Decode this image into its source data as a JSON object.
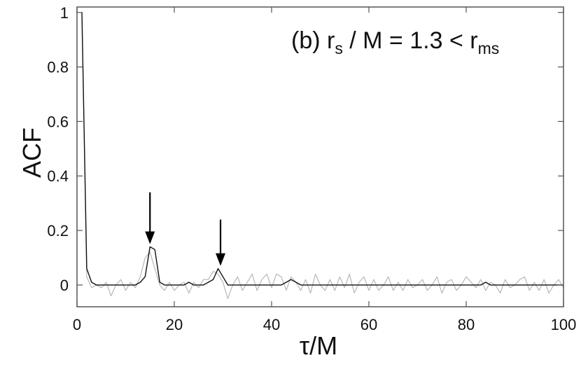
{
  "chart_data": {
    "type": "line",
    "xlabel": "τ/M",
    "ylabel": "ACF",
    "xlim": [
      0,
      100
    ],
    "ylim": [
      -0.08,
      1.02
    ],
    "x_ticks": [
      0,
      20,
      40,
      60,
      80,
      100
    ],
    "y_ticks": [
      0,
      0.2,
      0.4,
      0.6,
      0.8,
      1
    ],
    "y_tick_labels": [
      "0",
      "0.2",
      "0.4",
      "0.6",
      "0.8",
      "1"
    ],
    "x_tick_labels": [
      "0",
      "20",
      "40",
      "60",
      "80",
      "100"
    ],
    "grid": false,
    "annotation": {
      "prefix": "(b) r",
      "sub1": "s",
      "middle": " / M = 1.3 < r",
      "sub2": "ms"
    },
    "arrows": [
      {
        "x": 15,
        "y_tail": 0.34,
        "y_head": 0.15
      },
      {
        "x": 29.5,
        "y_tail": 0.24,
        "y_head": 0.07
      }
    ],
    "colors": {
      "dark_series": "#111111",
      "light_series": "#b8b8b8"
    },
    "series": [
      {
        "style": "light",
        "x": [
          1,
          2,
          3,
          4,
          5,
          6,
          7,
          8,
          9,
          10,
          11,
          12,
          13,
          14,
          15,
          16,
          17,
          18,
          19,
          20,
          21,
          22,
          23,
          24,
          25,
          26,
          27,
          28,
          29,
          30,
          31,
          32,
          33,
          34,
          35,
          36,
          37,
          38,
          39,
          40,
          41,
          42,
          43,
          44,
          45,
          46,
          47,
          48,
          49,
          50,
          51,
          52,
          53,
          54,
          55,
          56,
          57,
          58,
          59,
          60,
          61,
          62,
          63,
          64,
          65,
          66,
          67,
          68,
          69,
          70,
          71,
          72,
          73,
          74,
          75,
          76,
          77,
          78,
          79,
          80,
          81,
          82,
          83,
          84,
          85,
          86,
          87,
          88,
          89,
          90,
          91,
          92,
          93,
          94,
          95,
          96,
          97,
          98,
          99,
          100
        ],
        "y": [
          1.0,
          0.03,
          -0.01,
          0.0,
          -0.01,
          0.01,
          -0.04,
          0.0,
          0.02,
          -0.02,
          0.01,
          -0.01,
          0.03,
          0.1,
          0.12,
          0.06,
          0.0,
          -0.02,
          0.01,
          -0.02,
          0.0,
          0.01,
          -0.03,
          0.01,
          -0.01,
          0.02,
          0.02,
          0.05,
          0.04,
          0.01,
          -0.05,
          0.0,
          0.03,
          -0.02,
          0.01,
          0.04,
          -0.02,
          0.02,
          0.04,
          -0.01,
          0.04,
          0.03,
          -0.02,
          0.03,
          0.01,
          -0.02,
          0.02,
          -0.03,
          0.04,
          0.0,
          -0.02,
          0.02,
          -0.02,
          0.03,
          -0.01,
          0.04,
          -0.03,
          0.01,
          0.03,
          -0.02,
          0.02,
          -0.02,
          0.0,
          0.03,
          -0.02,
          0.01,
          -0.02,
          0.02,
          -0.01,
          0.0,
          0.02,
          -0.02,
          0.0,
          0.03,
          -0.03,
          0.01,
          0.02,
          -0.02,
          0.0,
          0.03,
          0.01,
          -0.01,
          0.02,
          -0.02,
          0.01,
          0.0,
          -0.03,
          0.02,
          -0.01,
          0.0,
          0.02,
          0.03,
          -0.02,
          0.01,
          -0.02,
          0.02,
          -0.03,
          0.0,
          0.02,
          -0.01
        ]
      },
      {
        "style": "dark",
        "x": [
          1,
          2,
          3,
          4,
          5,
          6,
          7,
          8,
          9,
          10,
          11,
          12,
          13,
          14,
          15,
          16,
          17,
          18,
          19,
          20,
          21,
          22,
          23,
          24,
          25,
          26,
          27,
          28,
          29,
          30,
          31,
          32,
          33,
          34,
          35,
          36,
          37,
          38,
          39,
          40,
          41,
          42,
          43,
          44,
          45,
          46,
          47,
          48,
          49,
          50,
          51,
          52,
          53,
          54,
          55,
          56,
          57,
          58,
          59,
          60,
          61,
          62,
          63,
          64,
          65,
          66,
          67,
          68,
          69,
          70,
          71,
          72,
          73,
          74,
          75,
          76,
          77,
          78,
          79,
          80,
          81,
          82,
          83,
          84,
          85,
          86,
          87,
          88,
          89,
          90,
          91,
          92,
          93,
          94,
          95,
          96,
          97,
          98,
          99,
          100
        ],
        "y": [
          1.0,
          0.06,
          0.01,
          0.0,
          0.0,
          0.0,
          0.0,
          0.0,
          0.0,
          0.0,
          0.0,
          0.0,
          0.01,
          0.03,
          0.14,
          0.13,
          0.01,
          0.0,
          0.0,
          0.0,
          0.0,
          0.0,
          0.01,
          0.0,
          0.0,
          0.0,
          0.01,
          0.02,
          0.06,
          0.03,
          0.0,
          0.0,
          0.0,
          0.0,
          0.0,
          0.0,
          0.0,
          0.0,
          0.0,
          0.0,
          0.0,
          0.0,
          0.01,
          0.02,
          0.01,
          0.0,
          0.0,
          0.0,
          0.0,
          0.0,
          0.0,
          0.0,
          0.0,
          0.0,
          0.0,
          0.0,
          0.0,
          0.0,
          0.0,
          0.0,
          0.0,
          0.0,
          0.0,
          0.0,
          0.0,
          0.0,
          0.0,
          0.0,
          0.0,
          0.0,
          0.0,
          0.0,
          0.0,
          0.0,
          0.0,
          0.0,
          0.0,
          0.0,
          0.0,
          0.0,
          0.0,
          0.0,
          0.0,
          0.01,
          0.0,
          0.0,
          0.0,
          0.0,
          0.0,
          0.0,
          0.0,
          0.0,
          0.0,
          0.0,
          0.0,
          0.0,
          0.0,
          0.0,
          0.0,
          0.0
        ]
      }
    ]
  }
}
